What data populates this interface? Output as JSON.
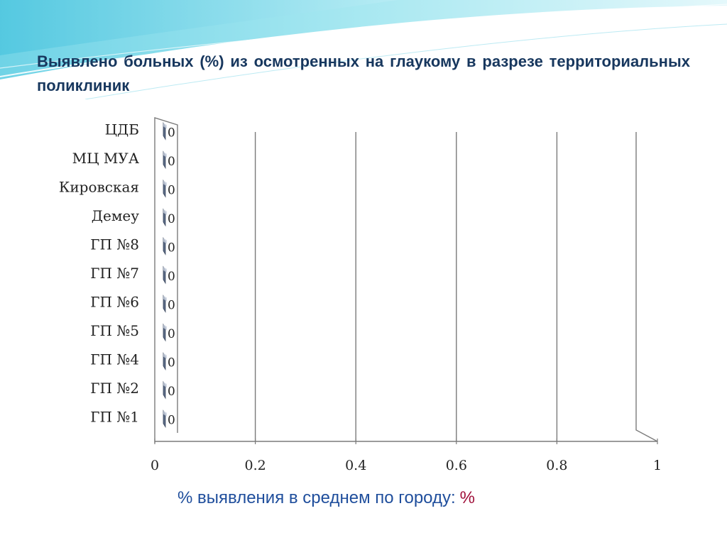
{
  "slide": {
    "title": "Выявлено больных (%) из осмотренных на глаукому в разрезе территориальных поликлиник",
    "footer_text": "% выявления в среднем по городу:",
    "footer_value_text": "%",
    "colors": {
      "title": "#17375e",
      "footer_text": "#1f4e9c",
      "footer_value": "#a0103a",
      "bar": "#5a6a86"
    }
  },
  "chart_data": {
    "type": "bar",
    "orientation": "horizontal",
    "three_d": true,
    "categories": [
      "ГП №1",
      "ГП №2",
      "ГП №4",
      "ГП №5",
      "ГП №6",
      "ГП  №7",
      "ГП №8",
      "Демеу",
      "Кировская",
      "МЦ МУА",
      "ЦДБ"
    ],
    "values": [
      0,
      0,
      0,
      0,
      0,
      0,
      0,
      0,
      0,
      0,
      0
    ],
    "value_labels": [
      "0",
      "0",
      "0",
      "0",
      "0",
      "0",
      "0",
      "0",
      "0",
      "0",
      "0"
    ],
    "xlim": [
      0,
      1
    ],
    "x_ticks": [
      0,
      0.2,
      0.4,
      0.6,
      0.8,
      1
    ],
    "x_tick_labels": [
      "0",
      "0.2",
      "0.4",
      "0.6",
      "0.8",
      "1"
    ],
    "grid": true,
    "legend": "none"
  }
}
